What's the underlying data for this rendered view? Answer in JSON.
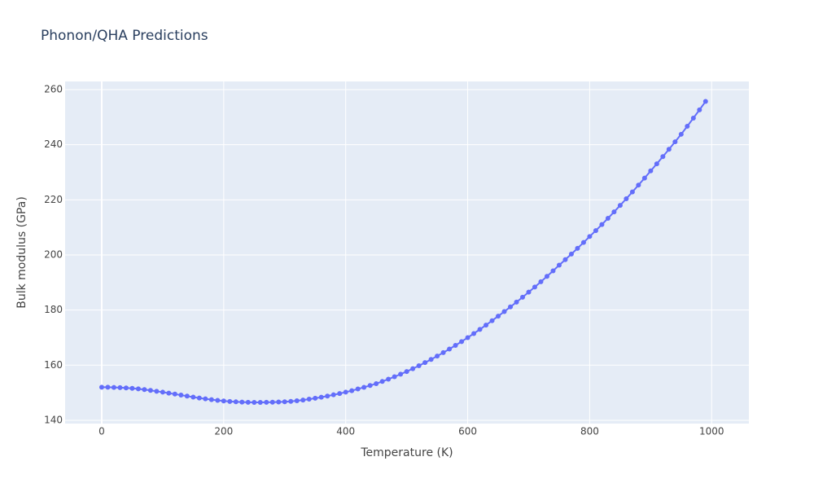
{
  "chart_data": {
    "type": "line",
    "title": "Phonon/QHA Predictions",
    "x_label": "Temperature (K)",
    "y_label": "Bulk modulus (GPa)",
    "x": [
      0,
      10,
      20,
      30,
      40,
      50,
      60,
      70,
      80,
      90,
      100,
      110,
      120,
      130,
      140,
      150,
      160,
      170,
      180,
      190,
      200,
      210,
      220,
      230,
      240,
      250,
      260,
      270,
      280,
      290,
      300,
      310,
      320,
      330,
      340,
      350,
      360,
      370,
      380,
      390,
      400,
      410,
      420,
      430,
      440,
      450,
      460,
      470,
      480,
      490,
      500,
      510,
      520,
      530,
      540,
      550,
      560,
      570,
      580,
      590,
      600,
      610,
      620,
      630,
      640,
      650,
      660,
      670,
      680,
      690,
      700,
      710,
      720,
      730,
      740,
      750,
      760,
      770,
      780,
      790,
      800,
      810,
      820,
      830,
      840,
      850,
      860,
      870,
      880,
      890,
      900,
      910,
      920,
      930,
      940,
      950,
      960,
      970,
      980,
      990
    ],
    "series": [
      {
        "name": "Bulk modulus",
        "color": "#636efa",
        "values": [
          152.0,
          151.98,
          151.93,
          151.85,
          151.74,
          151.6,
          151.4,
          151.15,
          150.85,
          150.53,
          150.2,
          149.86,
          149.5,
          149.13,
          148.76,
          148.4,
          148.07,
          147.77,
          147.49,
          147.23,
          147.0,
          146.82,
          146.69,
          146.6,
          146.54,
          146.5,
          146.5,
          146.52,
          146.56,
          146.62,
          146.7,
          146.86,
          147.08,
          147.35,
          147.66,
          148.0,
          148.37,
          148.79,
          149.24,
          149.71,
          150.2,
          150.75,
          151.35,
          151.97,
          152.61,
          153.3,
          154.08,
          154.92,
          155.8,
          156.72,
          157.7,
          158.72,
          159.8,
          160.92,
          162.08,
          163.3,
          164.54,
          165.84,
          167.18,
          168.56,
          170.0,
          171.46,
          172.98,
          174.54,
          176.14,
          177.8,
          179.44,
          181.14,
          182.88,
          184.66,
          186.5,
          188.36,
          190.28,
          192.24,
          194.24,
          196.3,
          198.28,
          200.32,
          202.4,
          204.52,
          206.7,
          208.84,
          211.04,
          213.3,
          215.62,
          218.0,
          220.4,
          222.86,
          225.36,
          227.9,
          230.5,
          233.06,
          235.68,
          238.34,
          241.04,
          243.8,
          246.7,
          249.65,
          252.65,
          255.7
        ]
      }
    ],
    "xlim": [
      -60,
      1061
    ],
    "ylim": [
      138.8,
      262.96
    ],
    "xticks": [
      0,
      200,
      400,
      600,
      800,
      1000
    ],
    "yticks": [
      140,
      160,
      180,
      200,
      220,
      240,
      260
    ],
    "grid": true
  }
}
